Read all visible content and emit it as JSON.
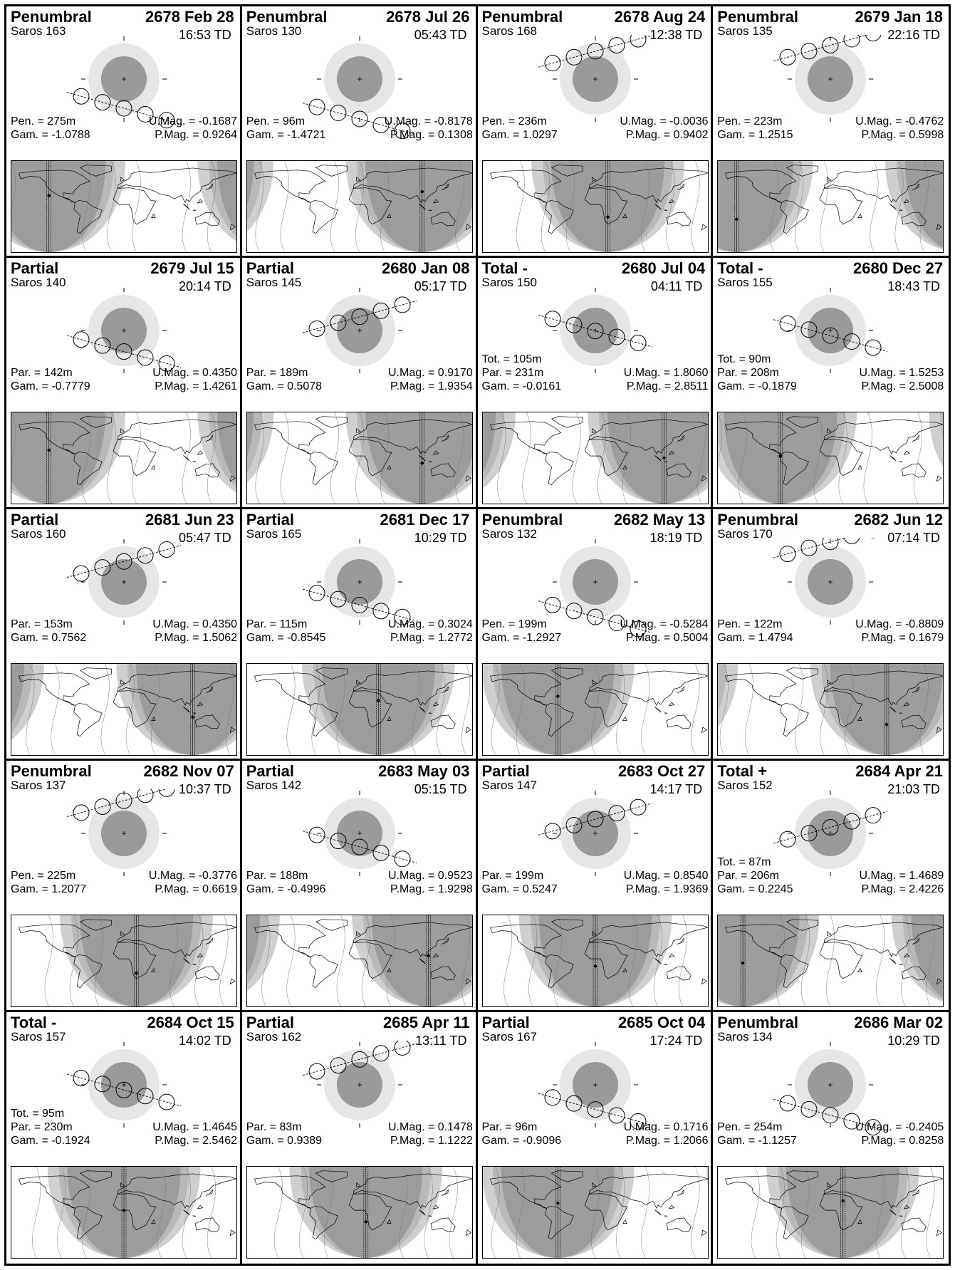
{
  "colors": {
    "penumbra": "#e6e6e6",
    "umbra": "#9a9a9a",
    "night": "#9c9c9c",
    "band": "#cfcfcf",
    "ink": "#000000"
  },
  "eclipses": [
    {
      "type": "Penumbral",
      "date": "2678 Feb 28",
      "saros": "Saros 163",
      "time": "16:53 TD",
      "left": [
        "Pen. = 275m",
        "Gam. = -1.0788"
      ],
      "right": [
        "U.Mag. = -0.1687",
        "P.Mag. = 0.9264"
      ],
      "gamma": -1.0788,
      "night_lon": -120
    },
    {
      "type": "Penumbral",
      "date": "2678 Jul 26",
      "saros": "Saros 130",
      "time": "05:43 TD",
      "left": [
        "Pen. =  96m",
        "Gam. = -1.4721"
      ],
      "right": [
        "U.Mag. = -0.8178",
        "P.Mag. = 0.1308"
      ],
      "gamma": -1.4721,
      "night_lon": 100
    },
    {
      "type": "Penumbral",
      "date": "2678 Aug 24",
      "saros": "Saros 168",
      "time": "12:38 TD",
      "left": [
        "Pen. = 236m",
        "Gam. = 1.0297"
      ],
      "right": [
        "U.Mag. = -0.0036",
        "P.Mag. = 0.9402"
      ],
      "gamma": 1.0297,
      "night_lon": 20
    },
    {
      "type": "Penumbral",
      "date": "2679 Jan 18",
      "saros": "Saros 135",
      "time": "22:16 TD",
      "left": [
        "Pen. = 223m",
        "Gam. = 1.2515"
      ],
      "right": [
        "U.Mag. = -0.4762",
        "P.Mag. = 0.5998"
      ],
      "gamma": 1.2515,
      "night_lon": -150
    },
    {
      "type": "Partial",
      "date": "2679 Jul 15",
      "saros": "Saros 140",
      "time": "20:14 TD",
      "left": [
        "Par. = 142m",
        "Gam. = -0.7779"
      ],
      "right": [
        "U.Mag. = 0.4350",
        "P.Mag. = 1.4261"
      ],
      "gamma": -0.7779,
      "night_lon": -120
    },
    {
      "type": "Partial",
      "date": "2680 Jan 08",
      "saros": "Saros 145",
      "time": "05:17 TD",
      "left": [
        "Par. = 189m",
        "Gam. = 0.5078"
      ],
      "right": [
        "U.Mag. = 0.9170",
        "P.Mag. = 1.9354"
      ],
      "gamma": 0.5078,
      "night_lon": 100
    },
    {
      "type": "Total  -",
      "date": "2680 Jul 04",
      "saros": "Saros 150",
      "time": "04:11 TD",
      "left": [
        "Tot. = 105m",
        "Par. = 231m",
        "Gam. = -0.0161"
      ],
      "right": [
        "U.Mag. = 1.8060",
        "P.Mag. = 2.8511"
      ],
      "gamma": -0.0161,
      "night_lon": 110
    },
    {
      "type": "Total  -",
      "date": "2680 Dec 27",
      "saros": "Saros 155",
      "time": "18:43 TD",
      "left": [
        "Tot. =  90m",
        "Par. = 208m",
        "Gam. = -0.1879"
      ],
      "right": [
        "U.Mag. = 1.5253",
        "P.Mag. = 2.5008"
      ],
      "gamma": -0.1879,
      "night_lon": -80
    },
    {
      "type": "Partial",
      "date": "2681 Jun 23",
      "saros": "Saros 160",
      "time": "05:47 TD",
      "left": [
        "Par. = 153m",
        "Gam. = 0.7562"
      ],
      "right": [
        "U.Mag. = 0.4350",
        "P.Mag. = 1.5062"
      ],
      "gamma": 0.7562,
      "night_lon": 110
    },
    {
      "type": "Partial",
      "date": "2681 Dec 17",
      "saros": "Saros 165",
      "time": "10:29 TD",
      "left": [
        "Par. = 115m",
        "Gam. = -0.8545"
      ],
      "right": [
        "U.Mag. = 0.3024",
        "P.Mag. = 1.2772"
      ],
      "gamma": -0.8545,
      "night_lon": 30
    },
    {
      "type": "Penumbral",
      "date": "2682 May 13",
      "saros": "Saros 132",
      "time": "18:19 TD",
      "left": [
        "Pen. = 199m",
        "Gam. = -1.2927"
      ],
      "right": [
        "U.Mag. = -0.5284",
        "P.Mag. = 0.5004"
      ],
      "gamma": -1.2927,
      "night_lon": -60
    },
    {
      "type": "Penumbral",
      "date": "2682 Jun 12",
      "saros": "Saros 170",
      "time": "07:14 TD",
      "left": [
        "Pen. = 122m",
        "Gam. = 1.4794"
      ],
      "right": [
        "U.Mag. = -0.8809",
        "P.Mag. = 0.1679"
      ],
      "gamma": 1.4794,
      "night_lon": 90
    },
    {
      "type": "Penumbral",
      "date": "2682 Nov 07",
      "saros": "Saros 137",
      "time": "10:37 TD",
      "left": [
        "Pen. = 225m",
        "Gam. = 1.2077"
      ],
      "right": [
        "U.Mag. = -0.3776",
        "P.Mag. = 0.6619"
      ],
      "gamma": 1.2077,
      "night_lon": 20
    },
    {
      "type": "Partial",
      "date": "2683 May 03",
      "saros": "Saros 142",
      "time": "05:15 TD",
      "left": [
        "Par. = 188m",
        "Gam. = -0.4996"
      ],
      "right": [
        "U.Mag. = 0.9523",
        "P.Mag. = 1.9298"
      ],
      "gamma": -0.4996,
      "night_lon": 110
    },
    {
      "type": "Partial",
      "date": "2683 Oct 27",
      "saros": "Saros 147",
      "time": "14:17 TD",
      "left": [
        "Par. = 199m",
        "Gam. = 0.5247"
      ],
      "right": [
        "U.Mag. = 0.8540",
        "P.Mag. = 1.9369"
      ],
      "gamma": 0.5247,
      "night_lon": 0
    },
    {
      "type": "Total  +",
      "date": "2684 Apr 21",
      "saros": "Saros 152",
      "time": "21:03 TD",
      "left": [
        "Tot. =  87m",
        "Par. = 206m",
        "Gam. = 0.2245"
      ],
      "right": [
        "U.Mag. = 1.4689",
        "P.Mag. = 2.4226"
      ],
      "gamma": 0.2245,
      "night_lon": -140
    },
    {
      "type": "Total  -",
      "date": "2684 Oct 15",
      "saros": "Saros 157",
      "time": "14:02 TD",
      "left": [
        "Tot. =  95m",
        "Par. = 230m",
        "Gam. = -0.1924"
      ],
      "right": [
        "U.Mag. = 1.4645",
        "P.Mag. = 2.5462"
      ],
      "gamma": -0.1924,
      "night_lon": 0
    },
    {
      "type": "Partial",
      "date": "2685 Apr 11",
      "saros": "Saros 162",
      "time": "13:11 TD",
      "left": [
        "Par. =  83m",
        "Gam. = 0.9389"
      ],
      "right": [
        "U.Mag. = 0.1478",
        "P.Mag. = 1.1222"
      ],
      "gamma": 0.9389,
      "night_lon": 10
    },
    {
      "type": "Partial",
      "date": "2685 Oct 04",
      "saros": "Saros 167",
      "time": "17:24 TD",
      "left": [
        "Par. =  96m",
        "Gam. = -0.9096"
      ],
      "right": [
        "U.Mag. = 0.1716",
        "P.Mag. = 1.2066"
      ],
      "gamma": -0.9096,
      "night_lon": -60
    },
    {
      "type": "Penumbral",
      "date": "2686 Mar 02",
      "saros": "Saros 134",
      "time": "10:29 TD",
      "left": [
        "Pen. = 254m",
        "Gam. = -1.1257"
      ],
      "right": [
        "U.Mag. = -0.2405",
        "P.Mag. = 0.8258"
      ],
      "gamma": -1.1257,
      "night_lon": 20
    }
  ]
}
